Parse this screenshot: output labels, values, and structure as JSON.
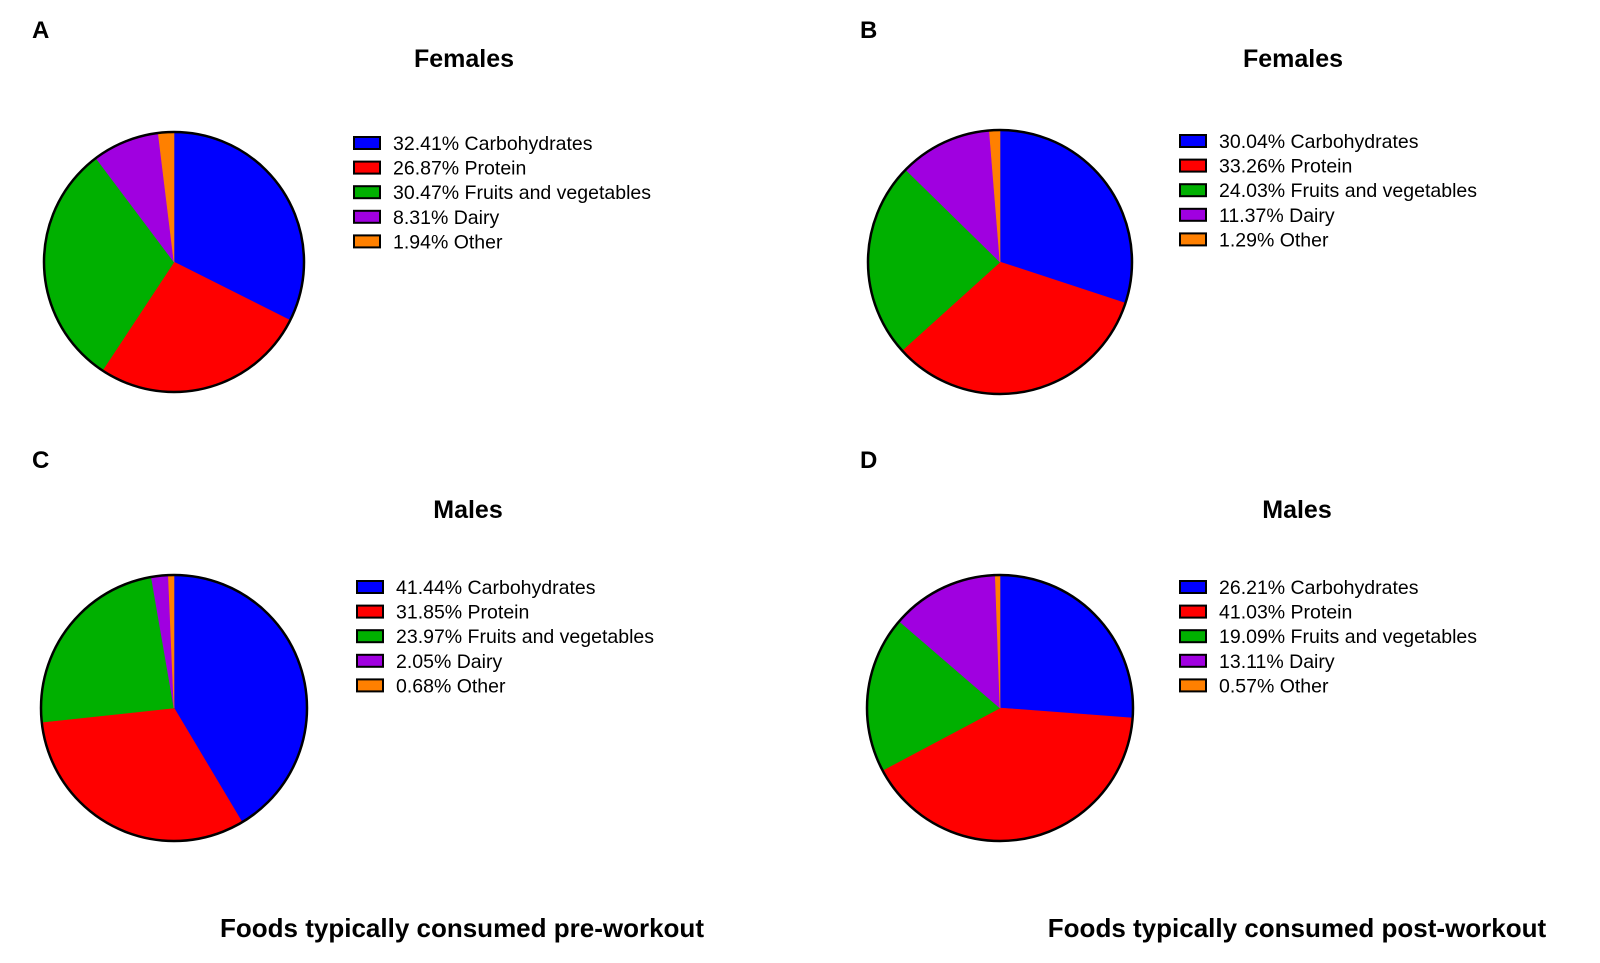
{
  "chart_data": [
    {
      "type": "pie",
      "panel": "A",
      "title": "Females",
      "group": "pre-workout",
      "legend": "right",
      "categories": [
        "Carbohydrates",
        "Protein",
        "Fruits and vegetables",
        "Dairy",
        "Other"
      ],
      "values": [
        32.41,
        26.87,
        30.47,
        8.31,
        1.94
      ],
      "labels": [
        "32.41%",
        "26.87%",
        "30.47%",
        "8.31%",
        "1.94%"
      ]
    },
    {
      "type": "pie",
      "panel": "B",
      "title": "Females",
      "group": "post-workout",
      "legend": "right",
      "categories": [
        "Carbohydrates",
        "Protein",
        "Fruits and vegetables",
        "Dairy",
        "Other"
      ],
      "values": [
        30.04,
        33.26,
        24.03,
        11.37,
        1.29
      ],
      "labels": [
        "30.04%",
        "33.26%",
        "24.03%",
        "11.37%",
        "1.29%"
      ]
    },
    {
      "type": "pie",
      "panel": "C",
      "title": "Males",
      "group": "pre-workout",
      "legend": "right",
      "categories": [
        "Carbohydrates",
        "Protein",
        "Fruits and vegetables",
        "Dairy",
        "Other"
      ],
      "values": [
        41.44,
        31.85,
        23.97,
        2.05,
        0.68
      ],
      "labels": [
        "41.44%",
        "31.85%",
        "23.97%",
        "2.05%",
        "0.68%"
      ]
    },
    {
      "type": "pie",
      "panel": "D",
      "title": "Males",
      "group": "post-workout",
      "legend": "right",
      "categories": [
        "Carbohydrates",
        "Protein",
        "Fruits and vegetables",
        "Dairy",
        "Other"
      ],
      "values": [
        26.21,
        41.03,
        19.09,
        13.11,
        0.57
      ],
      "labels": [
        "26.21%",
        "41.03%",
        "19.09%",
        "13.11%",
        "0.57%"
      ]
    }
  ],
  "colors": {
    "Carbohydrates": "#0000ff",
    "Protein": "#ff0000",
    "Fruits and vegetables": "#00b000",
    "Dairy": "#a000e0",
    "Other": "#ff8000",
    "outline": "#000000"
  },
  "captions": {
    "left": "Foods typically consumed pre-workout",
    "right": "Foods typically consumed post-workout"
  }
}
